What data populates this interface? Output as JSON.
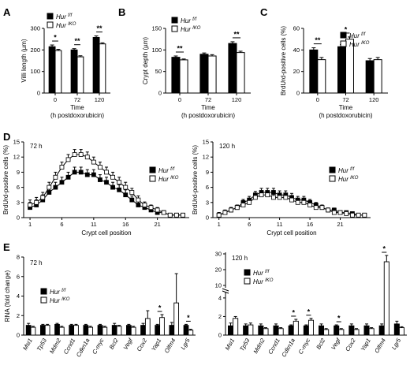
{
  "colors": {
    "hur_ff": "#000000",
    "hur_iko": "#ffffff",
    "stroke": "#000000"
  },
  "chart_data": [
    {
      "panel": "A",
      "type": "bar",
      "categories": [
        "0",
        "72",
        "120"
      ],
      "xlabel": "Time\n(h postdoxorubicin)",
      "ylabel": "Villi length (µm)",
      "ylim": [
        0,
        300
      ],
      "yticks": [
        0,
        100,
        200,
        300
      ],
      "legend": {
        "position": "top-left"
      },
      "series": [
        {
          "name": "Hur f/f",
          "values": [
            215,
            200,
            258
          ],
          "errors": [
            8,
            6,
            7
          ],
          "color": "#000000"
        },
        {
          "name": "Hur IKO",
          "values": [
            197,
            168,
            228
          ],
          "errors": [
            6,
            5,
            5
          ],
          "color": "#ffffff"
        }
      ],
      "significance": [
        {
          "category": "0",
          "label": "*"
        },
        {
          "category": "72",
          "label": "**"
        },
        {
          "category": "120",
          "label": "**"
        }
      ]
    },
    {
      "panel": "B",
      "type": "bar",
      "categories": [
        "0",
        "72",
        "120"
      ],
      "xlabel": "Time\n(h postdoxorubicin)",
      "ylabel": "Crypt depth (µm)",
      "ylim": [
        0,
        150
      ],
      "yticks": [
        0,
        50,
        100,
        150
      ],
      "legend": {
        "position": "top-left"
      },
      "series": [
        {
          "name": "Hur f/f",
          "values": [
            83,
            90,
            115
          ],
          "errors": [
            3,
            3,
            4
          ],
          "color": "#000000"
        },
        {
          "name": "Hur IKO",
          "values": [
            77,
            86,
            94
          ],
          "errors": [
            2,
            3,
            3
          ],
          "color": "#ffffff"
        }
      ],
      "significance": [
        {
          "category": "0",
          "label": "**"
        },
        {
          "category": "120",
          "label": "**"
        }
      ]
    },
    {
      "panel": "C",
      "type": "bar",
      "categories": [
        "0",
        "72",
        "120"
      ],
      "xlabel": "Time\n(h postdoxorubicin)",
      "ylabel": "BrdUrd-positive cells (%)",
      "ylim": [
        0,
        60
      ],
      "yticks": [
        0,
        20,
        40,
        60
      ],
      "legend": {
        "position": "top-right"
      },
      "series": [
        {
          "name": "Hur f/f",
          "values": [
            40,
            43,
            30
          ],
          "errors": [
            2,
            2,
            2
          ],
          "color": "#000000"
        },
        {
          "name": "Hur IKO",
          "values": [
            31,
            50,
            31
          ],
          "errors": [
            2,
            2,
            2
          ],
          "color": "#ffffff"
        }
      ],
      "significance": [
        {
          "category": "0",
          "label": "**"
        },
        {
          "category": "72",
          "label": "*"
        }
      ]
    },
    {
      "panel": "D",
      "type": "line",
      "annotation": "72 h",
      "xlabel": "Crypt cell position",
      "ylabel": "BrdUrd-positive cells (%)",
      "xlim": [
        0,
        26
      ],
      "xticks": [
        1,
        6,
        11,
        16,
        21
      ],
      "ylim": [
        0,
        15
      ],
      "yticks": [
        0,
        3,
        6,
        9,
        12,
        15
      ],
      "legend": {
        "position": "right"
      },
      "x": [
        1,
        2,
        3,
        4,
        5,
        6,
        7,
        8,
        9,
        10,
        11,
        12,
        13,
        14,
        15,
        16,
        17,
        18,
        19,
        20,
        21,
        22,
        23,
        24,
        25
      ],
      "series": [
        {
          "name": "Hur f/f",
          "marker": "filled-square",
          "values": [
            2,
            2.5,
            3.5,
            5,
            6,
            7,
            8,
            9,
            9,
            8.5,
            8.5,
            7.5,
            7,
            6,
            5.5,
            4.5,
            3.5,
            2.5,
            2,
            1.5,
            1,
            1,
            0.5,
            0.5,
            0.5
          ],
          "errors": [
            1,
            1,
            1,
            1,
            1,
            1,
            1,
            1,
            1,
            1,
            1,
            1,
            1,
            1,
            1,
            1,
            0.8,
            0.8,
            0.6,
            0.5,
            0.5,
            0.4,
            0.3,
            0.3,
            0.3
          ]
        },
        {
          "name": "Hur IKO",
          "marker": "open-square",
          "values": [
            2.5,
            3,
            4,
            6,
            8,
            10,
            11.5,
            12.5,
            12.5,
            12,
            11,
            10,
            9,
            8,
            7,
            6,
            5,
            3.5,
            2.5,
            2,
            1.5,
            1,
            0.5,
            0.5,
            0.5
          ],
          "errors": [
            1,
            1,
            1,
            1,
            1,
            1,
            1,
            1,
            1,
            1,
            1,
            1,
            1,
            1,
            1,
            1,
            0.8,
            0.8,
            0.6,
            0.5,
            0.5,
            0.4,
            0.3,
            0.3,
            0.3
          ]
        }
      ]
    },
    {
      "panel": "D2",
      "type": "line",
      "annotation": "120 h",
      "xlabel": "Crypt cell position",
      "ylabel": "BrdUrd-positive cells (%)",
      "xlim": [
        0,
        26
      ],
      "xticks": [
        1,
        6,
        11,
        16,
        21
      ],
      "ylim": [
        0,
        15
      ],
      "yticks": [
        0,
        3,
        6,
        9,
        12,
        15
      ],
      "legend": {
        "position": "right"
      },
      "x": [
        1,
        2,
        3,
        4,
        5,
        6,
        7,
        8,
        9,
        10,
        11,
        12,
        13,
        14,
        15,
        16,
        17,
        18,
        19,
        20,
        21,
        22,
        23,
        24,
        25
      ],
      "series": [
        {
          "name": "Hur f/f",
          "marker": "filled-square",
          "values": [
            0.5,
            1,
            1.5,
            2,
            3,
            3.5,
            4.5,
            5,
            5,
            5,
            4.5,
            4.5,
            4,
            3.5,
            3.5,
            3,
            2.5,
            2,
            1.5,
            1.5,
            1,
            1,
            0.8,
            0.5,
            0.5
          ],
          "errors": [
            0.5,
            0.5,
            0.5,
            0.5,
            0.6,
            0.7,
            0.7,
            0.8,
            0.8,
            0.8,
            0.8,
            0.8,
            0.8,
            0.7,
            0.7,
            0.6,
            0.5,
            0.5,
            0.4,
            0.4,
            0.3,
            0.3,
            0.3,
            0.3,
            0.3
          ]
        },
        {
          "name": "Hur IKO",
          "marker": "open-square",
          "values": [
            0.5,
            1,
            1.5,
            2,
            2.5,
            3,
            4,
            4.5,
            4.5,
            4,
            4,
            4,
            3.5,
            3,
            3,
            2.5,
            2,
            2,
            1.5,
            1,
            1,
            0.8,
            0.5,
            0.5,
            0.5
          ],
          "errors": [
            0.5,
            0.5,
            0.5,
            0.5,
            0.6,
            0.7,
            0.7,
            0.8,
            0.8,
            0.8,
            0.8,
            0.8,
            0.8,
            0.7,
            0.7,
            0.6,
            0.5,
            0.5,
            0.4,
            0.4,
            0.3,
            0.3,
            0.3,
            0.3,
            0.3
          ]
        }
      ]
    },
    {
      "panel": "E",
      "type": "bar",
      "annotation": "72 h",
      "ylabel": "RNA (fold change)",
      "ylim": [
        0,
        8
      ],
      "yticks": [
        0,
        2,
        4,
        6,
        8
      ],
      "legend": {
        "position": "left"
      },
      "categories": [
        "Msi1",
        "Tp53",
        "Mdm2",
        "Ccnd1",
        "Cdkn1a",
        "C-myc",
        "Bcl2",
        "Vegf",
        "Cox2",
        "Yap1",
        "Olfm4",
        "Lgr5"
      ],
      "series": [
        {
          "name": "Hur f/f",
          "values": [
            1,
            1,
            1.1,
            1,
            1,
            1,
            1,
            1,
            1,
            1,
            1,
            1
          ],
          "errors": [
            0.2,
            0.1,
            0.1,
            0.1,
            0.1,
            0.1,
            0.2,
            0.1,
            0.2,
            0.1,
            0.3,
            0.1
          ],
          "color": "#000000"
        },
        {
          "name": "Hur IKO",
          "values": [
            0.8,
            1,
            0.8,
            1,
            0.8,
            0.8,
            0.9,
            0.8,
            1.7,
            1.8,
            3.3,
            0.5
          ],
          "errors": [
            0.1,
            0.1,
            0.1,
            0.1,
            0.1,
            0.1,
            0.1,
            0.1,
            0.8,
            0.3,
            3,
            0.1
          ],
          "color": "#ffffff"
        }
      ],
      "significance": [
        {
          "category": "Yap1",
          "label": "*"
        },
        {
          "category": "Lgr5",
          "label": "*"
        }
      ]
    },
    {
      "panel": "E2",
      "type": "bar",
      "annotation": "120 h",
      "ylabel": "",
      "ylim": [
        0,
        31
      ],
      "yticks": [
        0,
        2,
        4,
        10,
        20,
        30
      ],
      "axis_break": [
        4.5,
        9
      ],
      "legend": {
        "position": "top-left"
      },
      "categories": [
        "Msi1",
        "Tp53",
        "Mdm2",
        "Ccnd1",
        "Cdkn1a",
        "C-myc",
        "Bcl2",
        "Vegf",
        "Cox2",
        "Yap1",
        "Olfm4",
        "Lgr5"
      ],
      "series": [
        {
          "name": "Hur f/f",
          "values": [
            1,
            1,
            1,
            1,
            1,
            1,
            1,
            1,
            1,
            1,
            1,
            1.2
          ],
          "errors": [
            0.3,
            0.2,
            0.2,
            0.2,
            0.1,
            0.1,
            0.2,
            0.1,
            0.2,
            0.2,
            0.2,
            0.3
          ],
          "color": "#000000"
        },
        {
          "name": "Hur IKO",
          "values": [
            1.8,
            1.1,
            0.7,
            0.7,
            1.5,
            1.6,
            0.6,
            0.6,
            0.6,
            0.7,
            25,
            0.8
          ],
          "errors": [
            0.2,
            0.2,
            0.1,
            0.1,
            0.2,
            0.2,
            0.1,
            0.1,
            0.1,
            0.1,
            4,
            0.1
          ],
          "color": "#ffffff"
        }
      ],
      "significance": [
        {
          "category": "Cdkn1a",
          "label": "*"
        },
        {
          "category": "C-myc",
          "label": "*"
        },
        {
          "category": "Vegf",
          "label": "*"
        },
        {
          "category": "Olfm4",
          "label": "*"
        }
      ]
    }
  ]
}
